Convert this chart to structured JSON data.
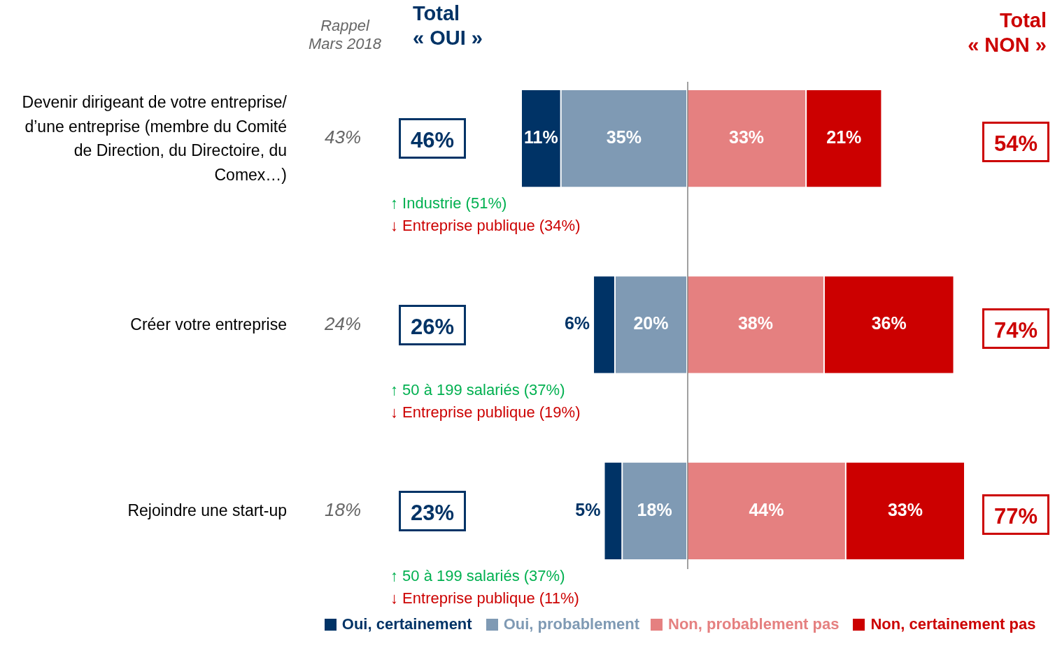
{
  "chart_data": [
    {
      "type": "bar",
      "orientation": "horizontal",
      "stacked": true,
      "categories": [
        "Devenir dirigeant de votre entreprise/ d’une entreprise (membre du Comité de Direction, du Directoire, du Comex…)",
        "Créer votre entreprise",
        "Rejoindre une start-up"
      ],
      "series": [
        {
          "name": "Oui, probablement",
          "color": "#7f9ab4",
          "values": [
            35,
            20,
            18
          ],
          "value_labels": [
            "35%",
            "20%",
            "18%"
          ]
        },
        {
          "name": "Oui, certainement",
          "color": "#003366",
          "values": [
            11,
            6,
            5
          ],
          "value_labels": [
            "11%",
            "6%",
            "5%"
          ]
        }
      ],
      "xlim": [
        46,
        0
      ],
      "tick_labels": "y",
      "legend": "bottom",
      "annotations": [
        "Rappel\nMars 2018",
        "Total\n« OUI »",
        "43%",
        "24%",
        "18%",
        "46%",
        "26%",
        "23%",
        "↑ Industrie (51%)",
        "↓ Entreprise publique (34%)",
        "↑ 50 à 199 salariés (37%)",
        "↓ Entreprise publique (19%)",
        "↑ 50 à 199 salariés (37%)",
        "↓ Entreprise publique (11%)"
      ]
    },
    {
      "type": "bar",
      "orientation": "horizontal",
      "stacked": true,
      "categories": [
        null,
        null,
        null
      ],
      "series": [
        {
          "name": "Non, probablement pas",
          "color": "#e58080",
          "values": [
            33,
            38,
            44
          ],
          "value_labels": [
            "33%",
            "38%",
            "44%"
          ]
        },
        {
          "name": "Non, certainement pas",
          "color": "#cc0000",
          "values": [
            21,
            36,
            33
          ],
          "value_labels": [
            "21%",
            "36%",
            "33%"
          ]
        }
      ],
      "xlim": [
        0,
        77
      ],
      "tick_labels": false,
      "legend": "bottom",
      "ref_lines": [
        {
          "axis": "x",
          "value": 0,
          "color": "#808080"
        }
      ],
      "annotations": [
        "Total\n« NON »",
        "54%",
        "74%",
        "77%"
      ]
    }
  ]
}
